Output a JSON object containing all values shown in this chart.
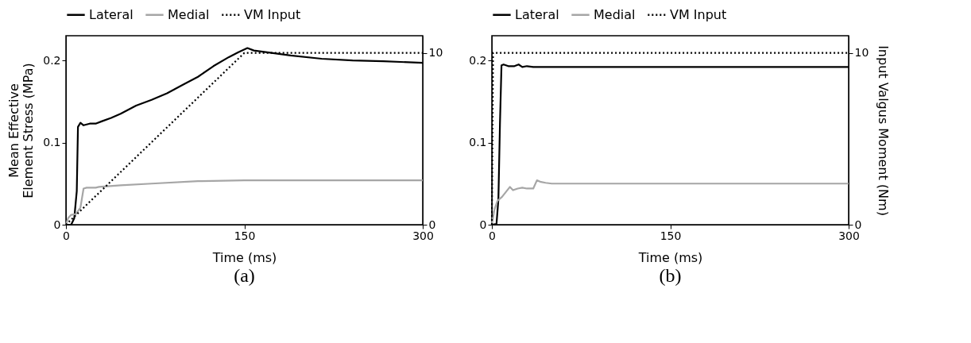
{
  "chart_data": [
    {
      "type": "line",
      "title": "(a)",
      "xlabel": "Time (ms)",
      "ylabel": "Mean Effective\nElement Stress (MPa)",
      "legend": "top",
      "xlim": [
        0,
        300
      ],
      "xticks": [
        0,
        150,
        300
      ],
      "ylim": [
        0,
        0.23
      ],
      "yticks": [
        0,
        0.1,
        0.2
      ],
      "y2lim": [
        0,
        11
      ],
      "y2ticks": [
        0,
        10
      ],
      "series": [
        {
          "name": "Lateral",
          "color": "#000000",
          "line_style": "solid",
          "x": [
            0,
            4.4,
            7,
            9.1,
            10.1,
            12.2,
            14.8,
            20,
            25,
            30.4,
            38,
            46,
            59,
            72,
            85,
            98,
            111,
            124,
            137,
            145,
            152.6,
            158,
            168,
            189,
            215,
            241,
            267,
            300
          ],
          "values": [
            0,
            0,
            0.008,
            0.041,
            0.119,
            0.124,
            0.121,
            0.123,
            0.123,
            0.126,
            0.13,
            0.135,
            0.145,
            0.152,
            0.16,
            0.17,
            0.18,
            0.193,
            0.204,
            0.21,
            0.215,
            0.212,
            0.21,
            0.206,
            0.202,
            0.2,
            0.199,
            0.197
          ]
        },
        {
          "name": "Medial",
          "color": "#a6a6a6",
          "line_style": "solid",
          "x": [
            0,
            1.8,
            4.4,
            8.3,
            12.2,
            14.8,
            17.4,
            25,
            27.8,
            46,
            72,
            111,
            150,
            202,
            300
          ],
          "values": [
            0,
            0.008,
            0.012,
            0.013,
            0.021,
            0.044,
            0.045,
            0.045,
            0.046,
            0.048,
            0.05,
            0.053,
            0.054,
            0.054,
            0.054
          ]
        },
        {
          "name": "VM Input",
          "color": "#000000",
          "line_style": "dotted",
          "axis": "y2",
          "x": [
            0,
            150,
            300
          ],
          "values": [
            0,
            10,
            10
          ]
        }
      ]
    },
    {
      "type": "line",
      "title": "(b)",
      "xlabel": "Time (ms)",
      "y2label": "Input Valgus Moment (Nm)",
      "legend": "top",
      "xlim": [
        0,
        300
      ],
      "xticks": [
        0,
        150,
        300
      ],
      "ylim": [
        0,
        0.23
      ],
      "yticks": [
        0,
        0.1,
        0.2
      ],
      "y2lim": [
        0,
        11
      ],
      "y2ticks": [
        0,
        10
      ],
      "series": [
        {
          "name": "Lateral",
          "color": "#000000",
          "line_style": "solid",
          "x": [
            0,
            3.9,
            5.5,
            6.8,
            8.1,
            9.9,
            13.8,
            19,
            22.5,
            25.6,
            29.5,
            34.8,
            50,
            103,
            300
          ],
          "values": [
            0,
            0.001,
            0.031,
            0.122,
            0.194,
            0.195,
            0.193,
            0.193,
            0.195,
            0.192,
            0.193,
            0.192,
            0.192,
            0.192,
            0.192
          ]
        },
        {
          "name": "Medial",
          "color": "#a6a6a6",
          "line_style": "solid",
          "x": [
            0,
            2.1,
            4.7,
            8.6,
            15.2,
            17.8,
            21.7,
            25.6,
            29.5,
            34.8,
            37.9,
            41.3,
            45.2,
            50.4,
            76.6,
            300
          ],
          "values": [
            0,
            0.018,
            0.029,
            0.034,
            0.046,
            0.042,
            0.044,
            0.045,
            0.044,
            0.044,
            0.054,
            0.052,
            0.051,
            0.05,
            0.05,
            0.05
          ]
        },
        {
          "name": "VM Input",
          "color": "#000000",
          "line_style": "dotted",
          "axis": "y2",
          "x": [
            0,
            1,
            300
          ],
          "values": [
            0,
            10,
            10
          ]
        }
      ]
    }
  ]
}
